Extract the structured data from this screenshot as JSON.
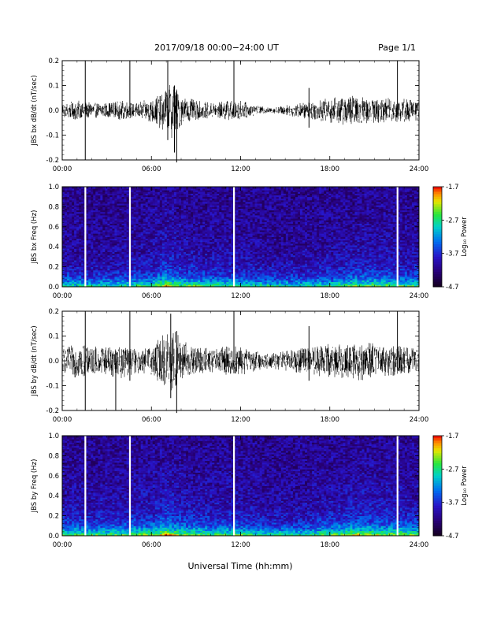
{
  "header": {
    "title": "2017/09/18  00:00−24:00 UT",
    "page": "Page 1/1"
  },
  "footer": {
    "xlabel": "Universal Time (hh:mm)"
  },
  "chart_data": [
    {
      "type": "line",
      "name": "bx",
      "ylabel": "JBS bx dB/dt (nT/sec)",
      "xlim": [
        0,
        24
      ],
      "ylim": [
        -0.2,
        0.2
      ],
      "xticks": [
        "00:00",
        "06:00",
        "12:00",
        "18:00",
        "24:00"
      ],
      "yticks": [
        "-0.2",
        "-0.1",
        "0.0",
        "0.1",
        "0.2"
      ],
      "envelope_hours": [
        0,
        1,
        2,
        3,
        4,
        5,
        6,
        7,
        7.5,
        8,
        9,
        10,
        11,
        12,
        13,
        14,
        15,
        16,
        17,
        18,
        19,
        20,
        21,
        22,
        23,
        24
      ],
      "envelope_amplitude": [
        0.03,
        0.04,
        0.03,
        0.03,
        0.04,
        0.03,
        0.05,
        0.09,
        0.12,
        0.06,
        0.04,
        0.03,
        0.04,
        0.04,
        0.02,
        0.01,
        0.02,
        0.03,
        0.04,
        0.05,
        0.06,
        0.06,
        0.05,
        0.05,
        0.05,
        0.04
      ],
      "spikes": [
        {
          "hour": 1.55,
          "low": -0.2,
          "high": 0.2
        },
        {
          "hour": 4.55,
          "low": -0.02,
          "high": 0.2
        },
        {
          "hour": 7.1,
          "low": -0.12,
          "high": 0.2
        },
        {
          "hour": 7.55,
          "low": -0.17,
          "high": 0.1
        },
        {
          "hour": 7.7,
          "low": -0.21,
          "high": 0.08
        },
        {
          "hour": 11.55,
          "low": -0.03,
          "high": 0.2
        },
        {
          "hour": 16.6,
          "low": -0.07,
          "high": 0.09
        },
        {
          "hour": 22.55,
          "low": -0.02,
          "high": 0.2
        }
      ]
    },
    {
      "type": "heatmap",
      "name": "bx-spectrogram",
      "ylabel": "JBS bx Freq (Hz)",
      "xlim": [
        0,
        24
      ],
      "ylim": [
        0.0,
        1.0
      ],
      "xticks": [
        "00:00",
        "06:00",
        "12:00",
        "18:00",
        "24:00"
      ],
      "yticks": [
        "0.0",
        "0.2",
        "0.4",
        "0.6",
        "0.8",
        "1.0"
      ],
      "colorbar_label": "Log₁₀ Power",
      "colorbar_range": [
        -4.7,
        -1.7
      ],
      "colorbar_ticks": [
        "-1.7",
        "-2.7",
        "-3.7",
        "-4.7"
      ],
      "gap_hours": [
        1.55,
        4.55,
        11.55,
        22.55
      ],
      "activity_hours": [
        0,
        2,
        4,
        6,
        7,
        8,
        10,
        12,
        14,
        16,
        18,
        20,
        22,
        24
      ],
      "activity_level": [
        0.35,
        0.3,
        0.35,
        0.45,
        0.8,
        0.55,
        0.45,
        0.4,
        0.3,
        0.3,
        0.4,
        0.55,
        0.5,
        0.4
      ]
    },
    {
      "type": "line",
      "name": "by",
      "ylabel": "JBS by dB/dt (nT/sec)",
      "xlim": [
        0,
        24
      ],
      "ylim": [
        -0.2,
        0.2
      ],
      "xticks": [
        "00:00",
        "06:00",
        "12:00",
        "18:00",
        "24:00"
      ],
      "yticks": [
        "-0.2",
        "-0.1",
        "0.0",
        "0.1",
        "0.2"
      ],
      "envelope_hours": [
        0,
        1,
        2,
        3,
        4,
        5,
        6,
        7,
        7.5,
        8,
        9,
        10,
        11,
        12,
        13,
        14,
        15,
        16,
        17,
        18,
        19,
        20,
        21,
        22,
        23,
        24
      ],
      "envelope_amplitude": [
        0.05,
        0.07,
        0.06,
        0.06,
        0.07,
        0.05,
        0.06,
        0.12,
        0.15,
        0.09,
        0.06,
        0.05,
        0.06,
        0.06,
        0.04,
        0.03,
        0.04,
        0.05,
        0.06,
        0.07,
        0.07,
        0.08,
        0.07,
        0.06,
        0.06,
        0.05
      ],
      "spikes": [
        {
          "hour": 1.55,
          "low": -0.2,
          "high": 0.2
        },
        {
          "hour": 3.6,
          "low": -0.2,
          "high": 0.04
        },
        {
          "hour": 4.55,
          "low": -0.08,
          "high": 0.2
        },
        {
          "hour": 7.3,
          "low": -0.15,
          "high": 0.19
        },
        {
          "hour": 7.7,
          "low": -0.21,
          "high": 0.12
        },
        {
          "hour": 11.55,
          "low": -0.05,
          "high": 0.2
        },
        {
          "hour": 16.6,
          "low": -0.08,
          "high": 0.14
        },
        {
          "hour": 22.55,
          "low": -0.03,
          "high": 0.2
        }
      ]
    },
    {
      "type": "heatmap",
      "name": "by-spectrogram",
      "ylabel": "JBS by Freq (Hz)",
      "xlim": [
        0,
        24
      ],
      "ylim": [
        0.0,
        1.0
      ],
      "xticks": [
        "00:00",
        "06:00",
        "12:00",
        "18:00",
        "24:00"
      ],
      "yticks": [
        "0.0",
        "0.2",
        "0.4",
        "0.6",
        "0.8",
        "1.0"
      ],
      "colorbar_label": "Log₁₀ Power",
      "colorbar_range": [
        -4.7,
        -1.7
      ],
      "colorbar_ticks": [
        "-1.7",
        "-2.7",
        "-3.7",
        "-4.7"
      ],
      "gap_hours": [
        1.55,
        4.55,
        11.55,
        22.55
      ],
      "activity_hours": [
        0,
        2,
        4,
        6,
        7,
        8,
        10,
        12,
        14,
        16,
        18,
        20,
        22,
        24
      ],
      "activity_level": [
        0.5,
        0.45,
        0.5,
        0.6,
        0.85,
        0.6,
        0.5,
        0.5,
        0.35,
        0.35,
        0.5,
        0.7,
        0.6,
        0.5
      ]
    }
  ]
}
